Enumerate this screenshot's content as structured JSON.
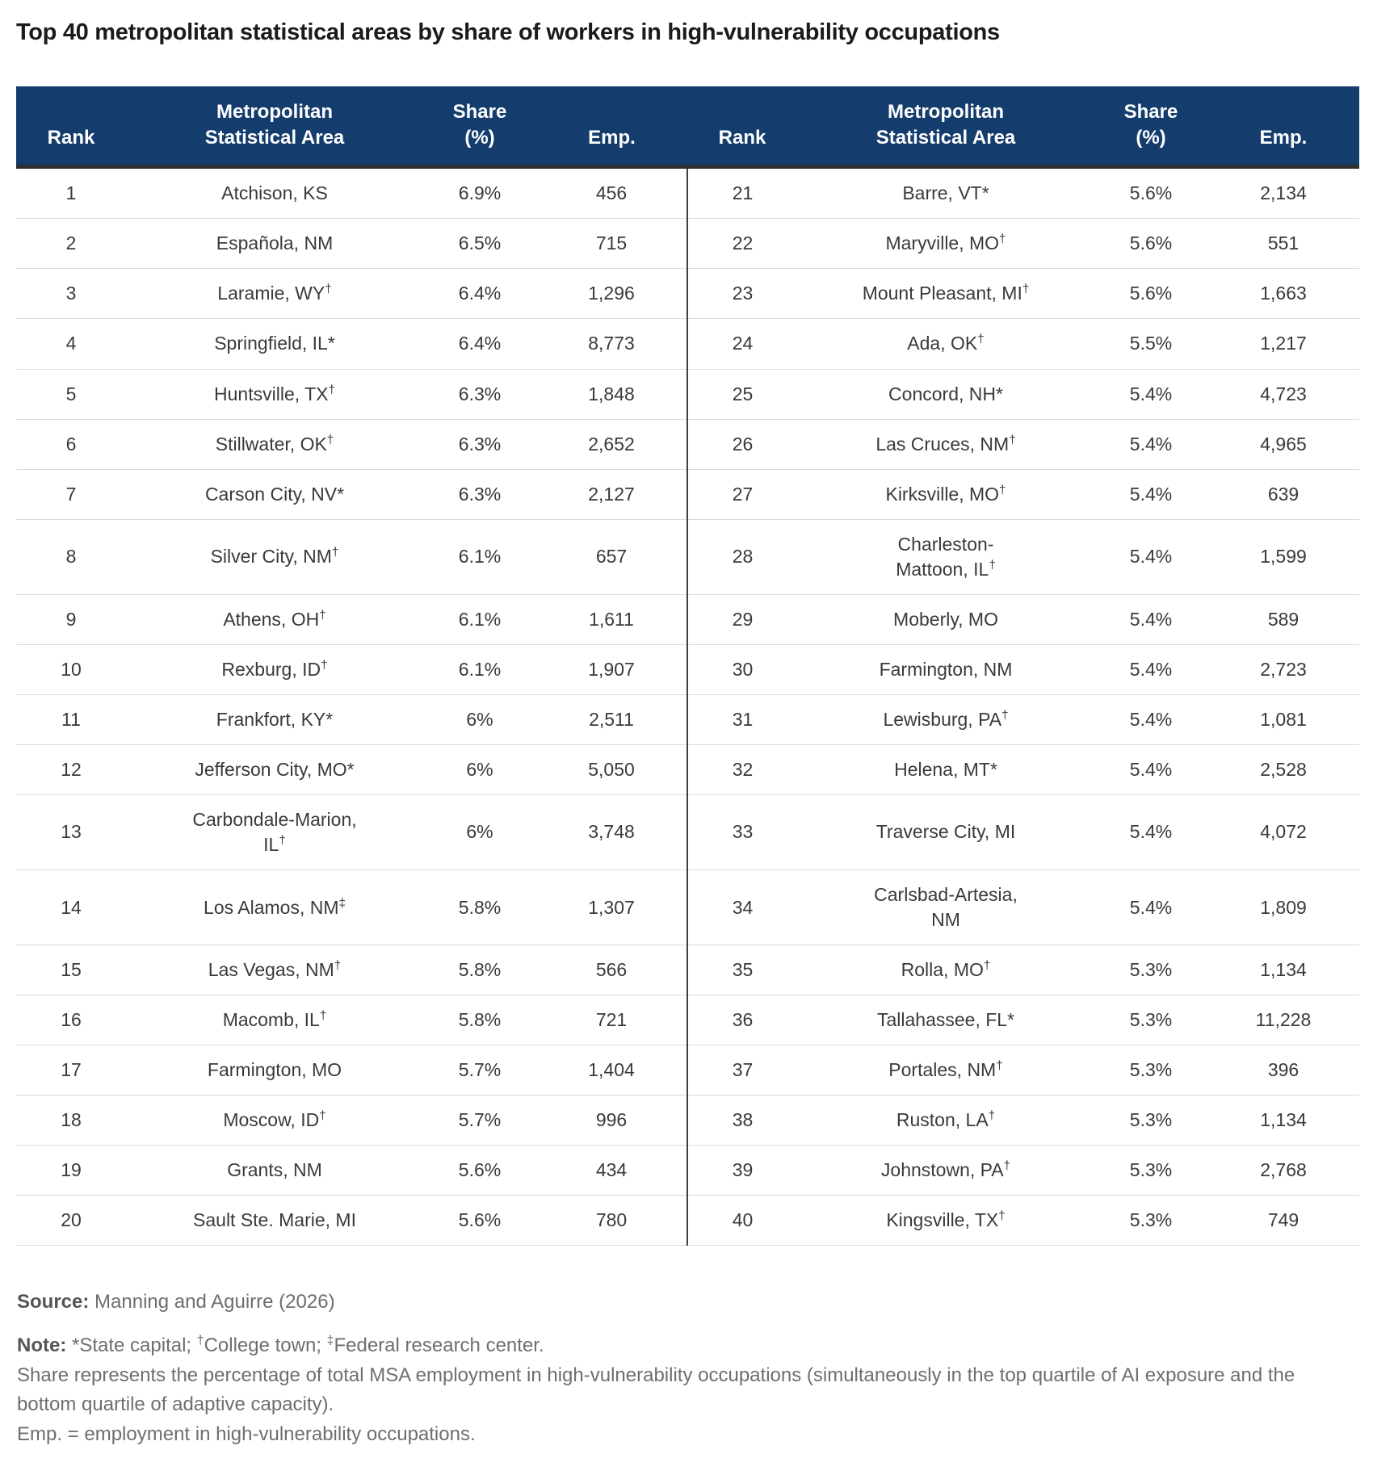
{
  "chart_data": {
    "type": "table",
    "title": "Top 40 metropolitan statistical areas by share of workers in high-vulnerability occupations",
    "layout": "two-column-halves",
    "columns": [
      "Rank",
      "Metropolitan\nStatistical Area",
      "Share\n(%)",
      "Emp."
    ],
    "rows": [
      {
        "rank": "1",
        "msa": "Atchison, KS",
        "marker": "",
        "share": "6.9%",
        "emp": "456"
      },
      {
        "rank": "2",
        "msa": "Española, NM",
        "marker": "",
        "share": "6.5%",
        "emp": "715"
      },
      {
        "rank": "3",
        "msa": "Laramie, WY",
        "marker": "†",
        "share": "6.4%",
        "emp": "1,296"
      },
      {
        "rank": "4",
        "msa": "Springfield, IL*",
        "marker": "",
        "share": "6.4%",
        "emp": "8,773"
      },
      {
        "rank": "5",
        "msa": "Huntsville, TX",
        "marker": "†",
        "share": "6.3%",
        "emp": "1,848"
      },
      {
        "rank": "6",
        "msa": "Stillwater, OK",
        "marker": "†",
        "share": "6.3%",
        "emp": "2,652"
      },
      {
        "rank": "7",
        "msa": "Carson City, NV*",
        "marker": "",
        "share": "6.3%",
        "emp": "2,127"
      },
      {
        "rank": "8",
        "msa": "Silver City, NM",
        "marker": "†",
        "share": "6.1%",
        "emp": "657"
      },
      {
        "rank": "9",
        "msa": "Athens, OH",
        "marker": "†",
        "share": "6.1%",
        "emp": "1,611"
      },
      {
        "rank": "10",
        "msa": "Rexburg, ID",
        "marker": "†",
        "share": "6.1%",
        "emp": "1,907"
      },
      {
        "rank": "11",
        "msa": "Frankfort, KY*",
        "marker": "",
        "share": "6%",
        "emp": "2,511"
      },
      {
        "rank": "12",
        "msa": "Jefferson City, MO*",
        "marker": "",
        "share": "6%",
        "emp": "5,050"
      },
      {
        "rank": "13",
        "msa": "Carbondale-Marion,\nIL",
        "marker": "†",
        "share": "6%",
        "emp": "3,748"
      },
      {
        "rank": "14",
        "msa": "Los Alamos, NM",
        "marker": "‡",
        "share": "5.8%",
        "emp": "1,307"
      },
      {
        "rank": "15",
        "msa": "Las Vegas, NM",
        "marker": "†",
        "share": "5.8%",
        "emp": "566"
      },
      {
        "rank": "16",
        "msa": "Macomb, IL",
        "marker": "†",
        "share": "5.8%",
        "emp": "721"
      },
      {
        "rank": "17",
        "msa": "Farmington, MO",
        "marker": "",
        "share": "5.7%",
        "emp": "1,404"
      },
      {
        "rank": "18",
        "msa": "Moscow, ID",
        "marker": "†",
        "share": "5.7%",
        "emp": "996"
      },
      {
        "rank": "19",
        "msa": "Grants, NM",
        "marker": "",
        "share": "5.6%",
        "emp": "434"
      },
      {
        "rank": "20",
        "msa": "Sault Ste. Marie, MI",
        "marker": "",
        "share": "5.6%",
        "emp": "780"
      },
      {
        "rank": "21",
        "msa": "Barre, VT*",
        "marker": "",
        "share": "5.6%",
        "emp": "2,134"
      },
      {
        "rank": "22",
        "msa": "Maryville, MO",
        "marker": "†",
        "share": "5.6%",
        "emp": "551"
      },
      {
        "rank": "23",
        "msa": "Mount Pleasant, MI",
        "marker": "†",
        "share": "5.6%",
        "emp": "1,663"
      },
      {
        "rank": "24",
        "msa": "Ada, OK",
        "marker": "†",
        "share": "5.5%",
        "emp": "1,217"
      },
      {
        "rank": "25",
        "msa": "Concord, NH*",
        "marker": "",
        "share": "5.4%",
        "emp": "4,723"
      },
      {
        "rank": "26",
        "msa": "Las Cruces, NM",
        "marker": "†",
        "share": "5.4%",
        "emp": "4,965"
      },
      {
        "rank": "27",
        "msa": "Kirksville, MO",
        "marker": "†",
        "share": "5.4%",
        "emp": "639"
      },
      {
        "rank": "28",
        "msa": "Charleston-\nMattoon, IL",
        "marker": "†",
        "share": "5.4%",
        "emp": "1,599"
      },
      {
        "rank": "29",
        "msa": "Moberly, MO",
        "marker": "",
        "share": "5.4%",
        "emp": "589"
      },
      {
        "rank": "30",
        "msa": "Farmington, NM",
        "marker": "",
        "share": "5.4%",
        "emp": "2,723"
      },
      {
        "rank": "31",
        "msa": "Lewisburg, PA",
        "marker": "†",
        "share": "5.4%",
        "emp": "1,081"
      },
      {
        "rank": "32",
        "msa": "Helena, MT*",
        "marker": "",
        "share": "5.4%",
        "emp": "2,528"
      },
      {
        "rank": "33",
        "msa": "Traverse City, MI",
        "marker": "",
        "share": "5.4%",
        "emp": "4,072"
      },
      {
        "rank": "34",
        "msa": "Carlsbad-Artesia,\nNM",
        "marker": "",
        "share": "5.4%",
        "emp": "1,809"
      },
      {
        "rank": "35",
        "msa": "Rolla, MO",
        "marker": "†",
        "share": "5.3%",
        "emp": "1,134"
      },
      {
        "rank": "36",
        "msa": "Tallahassee, FL*",
        "marker": "",
        "share": "5.3%",
        "emp": "11,228"
      },
      {
        "rank": "37",
        "msa": "Portales, NM",
        "marker": "†",
        "share": "5.3%",
        "emp": "396"
      },
      {
        "rank": "38",
        "msa": "Ruston, LA",
        "marker": "†",
        "share": "5.3%",
        "emp": "1,134"
      },
      {
        "rank": "39",
        "msa": "Johnstown, PA",
        "marker": "†",
        "share": "5.3%",
        "emp": "2,768"
      },
      {
        "rank": "40",
        "msa": "Kingsville, TX",
        "marker": "†",
        "share": "5.3%",
        "emp": "749"
      }
    ]
  },
  "footer": {
    "source_label": "Source:",
    "source_text": "Manning and Aguirre (2026)",
    "note_label": "Note:",
    "note_markers": [
      {
        "t": "*State capital; "
      },
      {
        "t": "†",
        "sup": true
      },
      {
        "t": "College town; "
      },
      {
        "t": "‡",
        "sup": true
      },
      {
        "t": "Federal research center."
      }
    ],
    "note_share": "Share represents the percentage of total MSA employment in high-vulnerability occupations (simultaneously in the top quartile of AI exposure and the bottom quartile of adaptive capacity).",
    "note_emp": "Emp. = employment in high-vulnerability occupations."
  },
  "colors": {
    "header_bg": "#143D6D",
    "header_text": "#FFFFFF",
    "body_text": "#3A3A3A",
    "row_rule": "#DBDBDB",
    "header_rule": "#2E2E2E",
    "column_divider": "#3F3F3F",
    "muted_text": "#6E6E6E"
  }
}
